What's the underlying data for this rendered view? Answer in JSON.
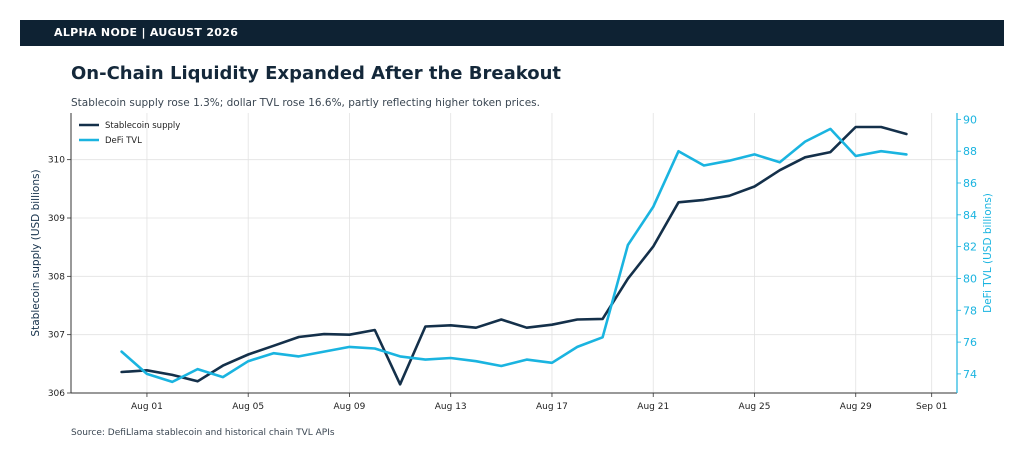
{
  "banner": {
    "text": "ALPHA NODE | AUGUST 2026"
  },
  "header": {
    "title": "On-Chain Liquidity Expanded After the Breakout",
    "subtitle": "Stablecoin supply rose 1.3%; dollar TVL rose 16.6%, partly reflecting higher token prices."
  },
  "footer": {
    "source": "Source: DefiLlama stablecoin and historical chain TVL APIs"
  },
  "colors": {
    "stablecoin": "#14304a",
    "tvl": "#1ab4e0",
    "grid": "#e2e2e2",
    "axis": "#333333"
  },
  "chart_data": {
    "type": "line",
    "x": [
      "2026-07-31",
      "2026-08-01",
      "2026-08-02",
      "2026-08-03",
      "2026-08-04",
      "2026-08-05",
      "2026-08-06",
      "2026-08-07",
      "2026-08-08",
      "2026-08-09",
      "2026-08-10",
      "2026-08-11",
      "2026-08-12",
      "2026-08-13",
      "2026-08-14",
      "2026-08-15",
      "2026-08-16",
      "2026-08-17",
      "2026-08-18",
      "2026-08-19",
      "2026-08-20",
      "2026-08-21",
      "2026-08-22",
      "2026-08-23",
      "2026-08-24",
      "2026-08-25",
      "2026-08-26",
      "2026-08-27",
      "2026-08-28",
      "2026-08-29",
      "2026-08-30",
      "2026-08-31"
    ],
    "xticks": [
      "Aug 01",
      "Aug 05",
      "Aug 09",
      "Aug 13",
      "Aug 17",
      "Aug 21",
      "Aug 25",
      "Aug 29",
      "Sep 01"
    ],
    "xlim": [
      "2026-07-29",
      "2026-09-02"
    ],
    "series": [
      {
        "name": "Stablecoin supply",
        "axis": "left",
        "values": [
          306.36,
          306.39,
          306.31,
          306.2,
          306.47,
          306.66,
          306.81,
          306.96,
          307.01,
          307.0,
          307.08,
          306.15,
          307.14,
          307.16,
          307.12,
          307.26,
          307.12,
          307.17,
          307.26,
          307.27,
          307.96,
          308.51,
          309.27,
          309.31,
          309.38,
          309.54,
          309.82,
          310.04,
          310.13,
          310.56,
          310.56,
          310.44
        ]
      },
      {
        "name": "DeFi TVL",
        "axis": "right",
        "values": [
          75.4,
          74.0,
          73.5,
          74.3,
          73.8,
          74.8,
          75.3,
          75.1,
          75.4,
          75.7,
          75.6,
          75.1,
          74.9,
          75.0,
          74.8,
          74.5,
          74.9,
          74.7,
          75.7,
          76.3,
          82.1,
          84.5,
          88.0,
          87.1,
          87.4,
          87.8,
          87.3,
          88.6,
          89.4,
          87.7,
          88.0,
          87.8
        ]
      }
    ],
    "ylabel": "Stablecoin supply (USD billions)",
    "ylim": [
      306.0,
      310.8
    ],
    "yticks": [
      "306",
      "307",
      "308",
      "309",
      "310"
    ],
    "ylabel_right": "DeFi TVL (USD billions)",
    "ylim_right": [
      72.8,
      90.4
    ],
    "yticks_right": [
      "74",
      "76",
      "78",
      "80",
      "82",
      "84",
      "86",
      "88",
      "90"
    ],
    "legend": "top-left",
    "grid": true
  }
}
